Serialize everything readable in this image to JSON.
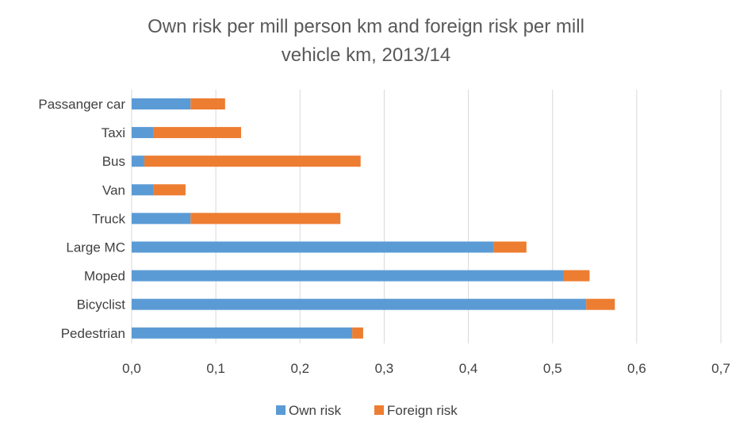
{
  "chart_data": {
    "type": "bar",
    "orientation": "horizontal",
    "stacked": true,
    "title": "Own risk per mill person km and foreign risk per mill vehicle km, 2013/14",
    "title_lines": [
      "Own risk per mill person km and foreign risk per mill",
      "vehicle km, 2013/14"
    ],
    "categories": [
      "Passanger car",
      "Taxi",
      "Bus",
      "Van",
      "Truck",
      "Large MC",
      "Moped",
      "Bicyclist",
      "Pedestrian"
    ],
    "series": [
      {
        "name": "Own risk",
        "color": "#5b9bd5",
        "values": [
          0.07,
          0.026,
          0.015,
          0.026,
          0.07,
          0.43,
          0.513,
          0.54,
          0.262
        ]
      },
      {
        "name": "Foreign risk",
        "color": "#ed7d31",
        "values": [
          0.041,
          0.104,
          0.257,
          0.038,
          0.178,
          0.039,
          0.031,
          0.034,
          0.013
        ]
      }
    ],
    "xlim": [
      0,
      0.7
    ],
    "xticks": [
      "0,0",
      "0,1",
      "0,2",
      "0,3",
      "0,4",
      "0,5",
      "0,6",
      "0,7"
    ],
    "xlabel": "",
    "ylabel": "",
    "grid": true,
    "legend_position": "bottom"
  }
}
